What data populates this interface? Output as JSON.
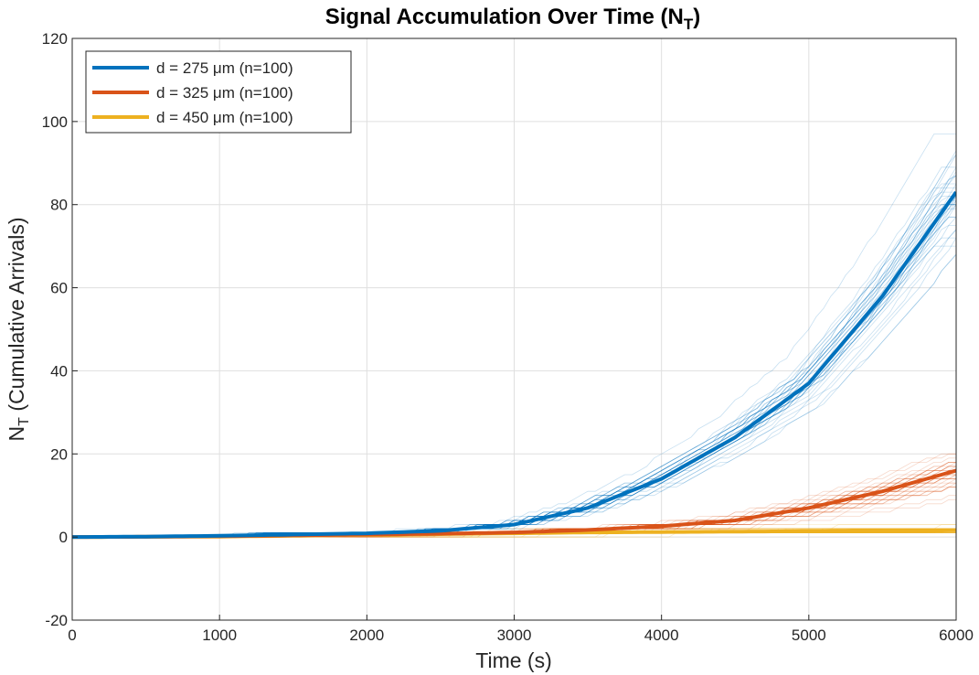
{
  "chart_data": {
    "type": "line",
    "title": "Signal Accumulation Over Time (N",
    "title_sub": "T",
    "title_suffix": ")",
    "xlabel": "Time (s)",
    "ylabel_main": "N",
    "ylabel_sub": "T",
    "ylabel_rest": " (Cumulative Arrivals)",
    "xlim": [
      0,
      6000
    ],
    "ylim": [
      -20,
      120
    ],
    "xticks": [
      0,
      1000,
      2000,
      3000,
      4000,
      5000,
      6000
    ],
    "yticks": [
      -20,
      0,
      20,
      40,
      60,
      80,
      100,
      120
    ],
    "grid": true,
    "legend_position": "top-left",
    "x": [
      0,
      500,
      1000,
      1500,
      2000,
      2500,
      3000,
      3500,
      4000,
      4500,
      5000,
      5500,
      6000
    ],
    "series": [
      {
        "name": "d = 275 μm (n=100)",
        "color": "#0072BD",
        "mean": [
          0,
          0.1,
          0.3,
          0.6,
          0.9,
          1.5,
          3,
          7,
          14,
          24,
          37,
          58,
          83
        ],
        "spread_end": 21
      },
      {
        "name": "d = 325 μm (n=100)",
        "color": "#D95319",
        "mean": [
          0,
          0.05,
          0.2,
          0.4,
          0.6,
          0.8,
          1.1,
          1.7,
          2.6,
          4,
          7,
          11,
          16
        ],
        "spread_end": 8
      },
      {
        "name": "d = 450 μm (n=100)",
        "color": "#EDB120",
        "mean": [
          0,
          0.05,
          0.1,
          0.3,
          0.5,
          0.7,
          0.9,
          1.1,
          1.2,
          1.3,
          1.4,
          1.5,
          1.6
        ],
        "spread_end": 2
      }
    ]
  }
}
